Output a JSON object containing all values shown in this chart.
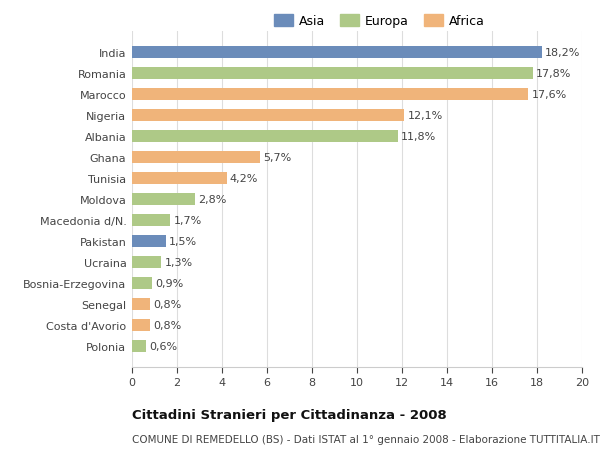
{
  "categories": [
    "India",
    "Romania",
    "Marocco",
    "Nigeria",
    "Albania",
    "Ghana",
    "Tunisia",
    "Moldova",
    "Macedonia d/N.",
    "Pakistan",
    "Ucraina",
    "Bosnia-Erzegovina",
    "Senegal",
    "Costa d'Avorio",
    "Polonia"
  ],
  "values": [
    18.2,
    17.8,
    17.6,
    12.1,
    11.8,
    5.7,
    4.2,
    2.8,
    1.7,
    1.5,
    1.3,
    0.9,
    0.8,
    0.8,
    0.6
  ],
  "labels": [
    "18,2%",
    "17,8%",
    "17,6%",
    "12,1%",
    "11,8%",
    "5,7%",
    "4,2%",
    "2,8%",
    "1,7%",
    "1,5%",
    "1,3%",
    "0,9%",
    "0,8%",
    "0,8%",
    "0,6%"
  ],
  "colors": [
    "#6b8cba",
    "#aec987",
    "#f0b47a",
    "#f0b47a",
    "#aec987",
    "#f0b47a",
    "#f0b47a",
    "#aec987",
    "#aec987",
    "#6b8cba",
    "#aec987",
    "#aec987",
    "#f0b47a",
    "#f0b47a",
    "#aec987"
  ],
  "legend_labels": [
    "Asia",
    "Europa",
    "Africa"
  ],
  "legend_colors": [
    "#6b8cba",
    "#aec987",
    "#f0b47a"
  ],
  "title": "Cittadini Stranieri per Cittadinanza - 2008",
  "subtitle": "COMUNE DI REMEDELLO (BS) - Dati ISTAT al 1° gennaio 2008 - Elaborazione TUTTITALIA.IT",
  "xlim": [
    0,
    20
  ],
  "xticks": [
    0,
    2,
    4,
    6,
    8,
    10,
    12,
    14,
    16,
    18,
    20
  ],
  "bg_color": "#ffffff",
  "grid_color": "#dddddd",
  "bar_height": 0.55,
  "label_fontsize": 8.0,
  "tick_fontsize": 8.0,
  "title_fontsize": 9.5,
  "subtitle_fontsize": 7.5
}
